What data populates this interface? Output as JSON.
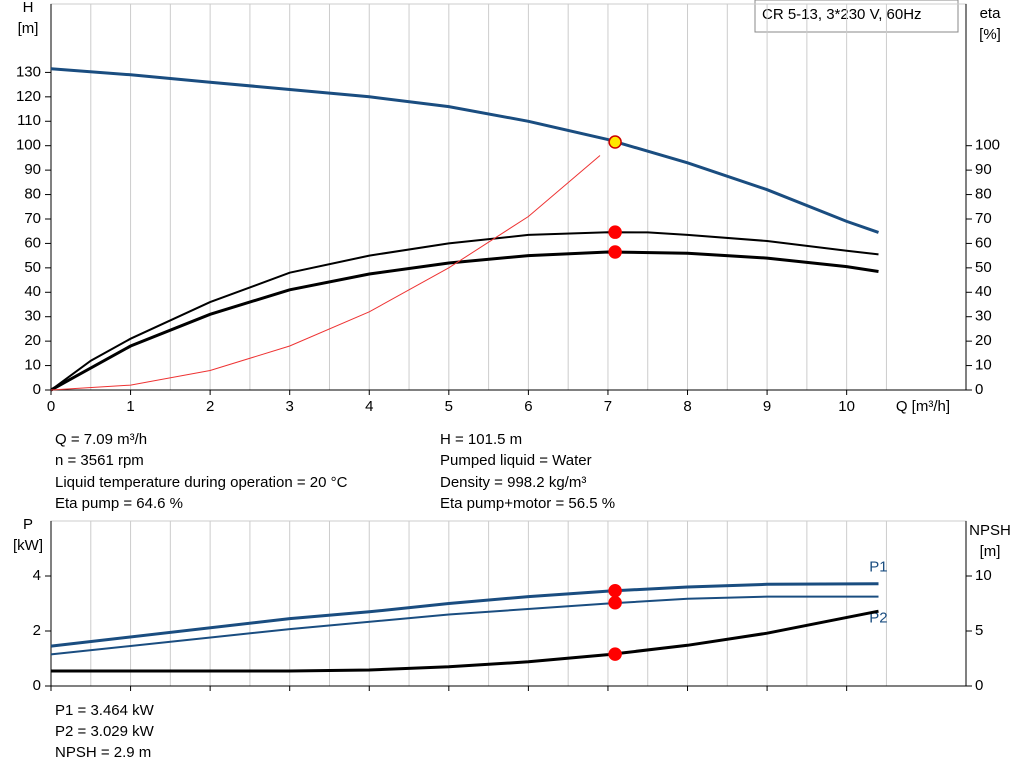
{
  "chart_data": [
    {
      "type": "line",
      "title": "CR 5-13, 3*230 V, 60Hz",
      "ylabel": [
        "H",
        "[m]"
      ],
      "y2label": [
        "eta",
        "[%]"
      ],
      "xlabel": "Q [m³/h]",
      "xlim": [
        0,
        11.5
      ],
      "xticks": [
        0,
        1,
        2,
        3,
        4,
        5,
        6,
        7,
        8,
        9,
        10
      ],
      "ylim": [
        0,
        158
      ],
      "yticks": [
        0,
        10,
        20,
        30,
        40,
        50,
        60,
        70,
        80,
        90,
        100,
        110,
        120,
        130
      ],
      "y2lim": [
        0,
        158
      ],
      "y2ticks": [
        0,
        10,
        20,
        30,
        40,
        50,
        60,
        70,
        80,
        90,
        100
      ],
      "grid": true,
      "series": [
        {
          "color": "#1a4d80",
          "width": 3,
          "x": [
            0,
            1,
            2,
            3,
            4,
            5,
            6,
            7,
            8,
            9,
            10,
            10.4
          ],
          "values": [
            131.5,
            129,
            126,
            123,
            120,
            116,
            110,
            102.5,
            93,
            82,
            69,
            64.5
          ]
        },
        {
          "color": "#000000",
          "width": 2,
          "axis": "y2",
          "x": [
            0,
            0.5,
            1,
            2,
            3,
            4,
            5,
            6,
            7,
            7.5,
            8,
            9,
            10,
            10.4
          ],
          "values": [
            0,
            12,
            21,
            36,
            48,
            55,
            60,
            63.5,
            64.6,
            64.5,
            63.5,
            61,
            57,
            55.5
          ]
        },
        {
          "color": "#000000",
          "width": 3,
          "axis": "y2",
          "x": [
            0,
            1,
            2,
            3,
            4,
            5,
            6,
            7,
            8,
            9,
            10,
            10.4
          ],
          "values": [
            0,
            18,
            31,
            41,
            47.5,
            52,
            55,
            56.5,
            56,
            54,
            50.5,
            48.5
          ]
        },
        {
          "color": "#ee3333",
          "width": 1,
          "x": [
            0,
            1,
            2,
            3,
            4,
            5,
            6,
            6.9
          ],
          "values": [
            0,
            2,
            8,
            18,
            32,
            50,
            71,
            96
          ]
        }
      ],
      "points": [
        {
          "x": 7.09,
          "y": 101.5,
          "color": "#ffe800"
        },
        {
          "x": 7.09,
          "y": 64.6,
          "color": "#ff0000"
        },
        {
          "x": 7.09,
          "y": 56.5,
          "color": "#ff0000"
        }
      ],
      "info": [
        "Q = 7.09 m³/h",
        "n = 3561 rpm",
        "Liquid temperature during operation = 20 °C",
        "Eta pump = 64.6 %",
        "H = 101.5 m",
        "Pumped liquid = Water",
        "Density = 998.2 kg/m³",
        "Eta pump+motor = 56.5 %"
      ]
    },
    {
      "type": "line",
      "ylabel": [
        "P",
        "[kW]"
      ],
      "y2label": [
        "NPSH",
        "[m]"
      ],
      "xlim": [
        0,
        11.5
      ],
      "xticks": [
        0,
        1,
        2,
        3,
        4,
        5,
        6,
        7,
        8,
        9,
        10
      ],
      "ylim": [
        0,
        6
      ],
      "yticks": [
        0,
        2,
        4
      ],
      "y2lim": [
        0,
        15
      ],
      "y2ticks": [
        0,
        5,
        10
      ],
      "grid": true,
      "series": [
        {
          "name": "P1",
          "color": "#1a4d80",
          "width": 3,
          "x": [
            0,
            3,
            4,
            5,
            6,
            7,
            8,
            9,
            10.4
          ],
          "values": [
            1.45,
            2.45,
            2.7,
            3.0,
            3.25,
            3.45,
            3.6,
            3.7,
            3.72
          ]
        },
        {
          "name": "P2",
          "color": "#1a4d80",
          "width": 2,
          "x": [
            0,
            3,
            5,
            7,
            8,
            9,
            10.4
          ],
          "values": [
            1.15,
            2.07,
            2.6,
            3.0,
            3.17,
            3.25,
            3.25
          ]
        },
        {
          "color": "#000000",
          "width": 3,
          "axis": "y2",
          "x": [
            0,
            3,
            4,
            5,
            6,
            7,
            8,
            9,
            10.4
          ],
          "values": [
            1.36,
            1.36,
            1.45,
            1.75,
            2.2,
            2.85,
            3.7,
            4.8,
            6.8
          ]
        }
      ],
      "points": [
        {
          "x": 7.09,
          "y": 3.464,
          "color": "#ff0000"
        },
        {
          "x": 7.09,
          "y": 3.029,
          "color": "#ff0000"
        },
        {
          "x": 7.09,
          "y": 2.9,
          "color": "#ff0000",
          "axis": "y2"
        }
      ],
      "info": [
        "P1 = 3.464 kW",
        "P2 = 3.029 kW",
        "NPSH = 2.9 m"
      ]
    }
  ]
}
